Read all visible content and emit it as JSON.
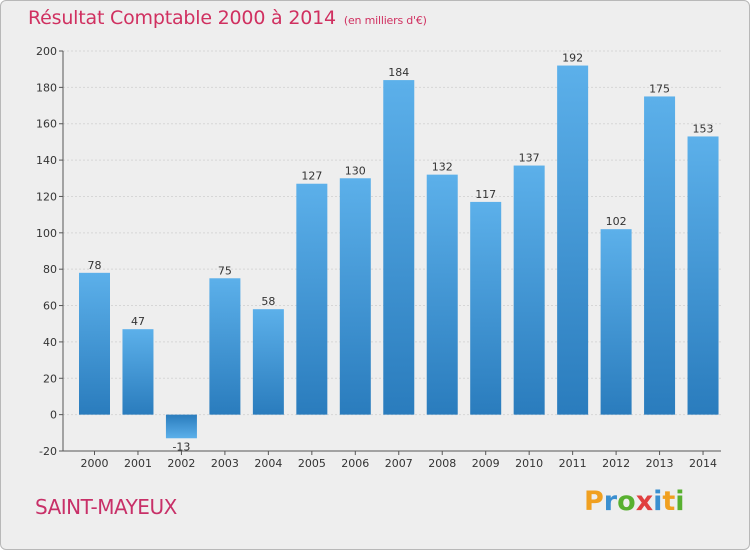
{
  "title": "Résultat Comptable 2000 à 2014",
  "subtitle": "(en milliers d'€)",
  "town": "SAINT-MAYEUX",
  "logo": {
    "letters": [
      "P",
      "r",
      "o",
      "x",
      "i",
      "t",
      "i"
    ],
    "colors": [
      "#f0a020",
      "#3a8fd0",
      "#58b030",
      "#e04040",
      "#3a8fd0",
      "#f0a020",
      "#58b030"
    ]
  },
  "colors": {
    "bar": "#4aa3e0",
    "bar_dark": "#2c7fc0",
    "title": "#d03060"
  },
  "chart_data": {
    "type": "bar",
    "title": "Résultat Comptable 2000 à 2014",
    "categories": [
      "2000",
      "2001",
      "2002",
      "2003",
      "2004",
      "2005",
      "2006",
      "2007",
      "2008",
      "2009",
      "2010",
      "2011",
      "2012",
      "2013",
      "2014"
    ],
    "values": [
      78,
      47,
      -13,
      75,
      58,
      127,
      130,
      184,
      132,
      117,
      137,
      192,
      102,
      175,
      153
    ],
    "xlabel": "",
    "ylabel": "",
    "ylim": [
      -20,
      200
    ],
    "yticks": [
      -20,
      0,
      20,
      40,
      60,
      80,
      100,
      120,
      140,
      160,
      180,
      200
    ],
    "grid": true
  }
}
